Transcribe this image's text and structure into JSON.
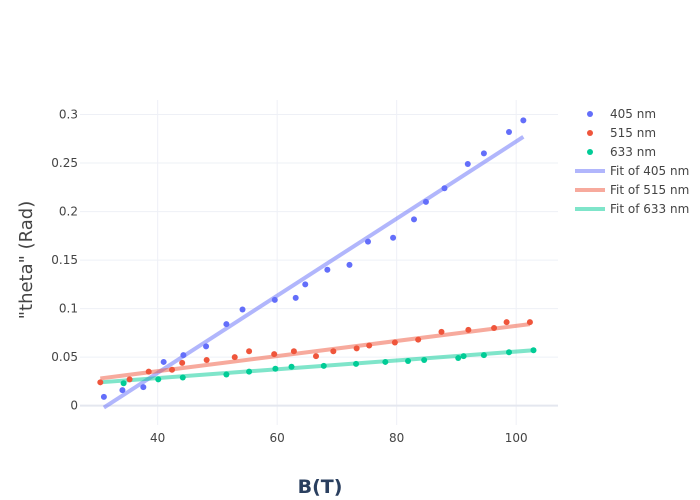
{
  "chart_data": {
    "type": "scatter",
    "title": "",
    "xlabel": "B(T)",
    "ylabel": "\"theta\" (Rad)",
    "xlim": [
      27,
      107
    ],
    "ylim": [
      -0.02,
      0.315
    ],
    "x_ticks": [
      40,
      60,
      80,
      100
    ],
    "y_ticks": [
      0,
      0.05,
      0.1,
      0.15,
      0.2,
      0.25,
      0.3
    ],
    "y_tick_labels": [
      "0",
      "0.05",
      "0.1",
      "0.15",
      "0.2",
      "0.25",
      "0.3"
    ],
    "grid": true,
    "legend_position": "top-right",
    "series": [
      {
        "name": "405 nm",
        "mode": "markers",
        "color": "#636efa",
        "x": [
          31.0,
          34.1,
          37.6,
          41.0,
          44.3,
          48.1,
          51.5,
          54.2,
          59.6,
          63.1,
          64.7,
          68.4,
          72.1,
          75.2,
          79.4,
          82.9,
          84.9,
          88.0,
          91.9,
          94.6,
          98.8,
          101.2
        ],
        "y": [
          0.009,
          0.016,
          0.019,
          0.045,
          0.052,
          0.061,
          0.084,
          0.099,
          0.109,
          0.111,
          0.125,
          0.14,
          0.145,
          0.169,
          0.173,
          0.192,
          0.21,
          0.224,
          0.249,
          0.26,
          0.282,
          0.294
        ]
      },
      {
        "name": "515 nm",
        "mode": "markers",
        "color": "#ef553b",
        "x": [
          30.4,
          35.3,
          38.5,
          42.4,
          44.1,
          48.2,
          52.9,
          55.3,
          59.5,
          62.8,
          66.5,
          69.4,
          73.3,
          75.4,
          79.7,
          83.6,
          87.5,
          92.0,
          96.3,
          98.4,
          102.3
        ],
        "y": [
          0.024,
          0.027,
          0.035,
          0.037,
          0.044,
          0.047,
          0.05,
          0.056,
          0.053,
          0.056,
          0.051,
          0.056,
          0.059,
          0.062,
          0.065,
          0.068,
          0.076,
          0.078,
          0.08,
          0.086,
          0.086
        ]
      },
      {
        "name": "633 nm",
        "mode": "markers",
        "color": "#00cc96",
        "x": [
          34.3,
          40.1,
          44.2,
          51.5,
          55.3,
          59.7,
          62.4,
          67.8,
          73.2,
          78.1,
          81.9,
          84.6,
          90.3,
          91.2,
          94.6,
          98.8,
          102.9
        ],
        "y": [
          0.023,
          0.027,
          0.029,
          0.032,
          0.035,
          0.038,
          0.04,
          0.041,
          0.043,
          0.045,
          0.046,
          0.047,
          0.049,
          0.051,
          0.052,
          0.055,
          0.057
        ]
      },
      {
        "name": "Fit of 405 nm",
        "mode": "lines",
        "color": "#636efa",
        "x": [
          31.0,
          101.2
        ],
        "y": [
          -0.002,
          0.277
        ]
      },
      {
        "name": "Fit of 515 nm",
        "mode": "lines",
        "color": "#ef553b",
        "x": [
          30.4,
          102.3
        ],
        "y": [
          0.028,
          0.084
        ]
      },
      {
        "name": "Fit of 633 nm",
        "mode": "lines",
        "color": "#00cc96",
        "x": [
          30.4,
          102.9
        ],
        "y": [
          0.024,
          0.057
        ]
      }
    ]
  }
}
